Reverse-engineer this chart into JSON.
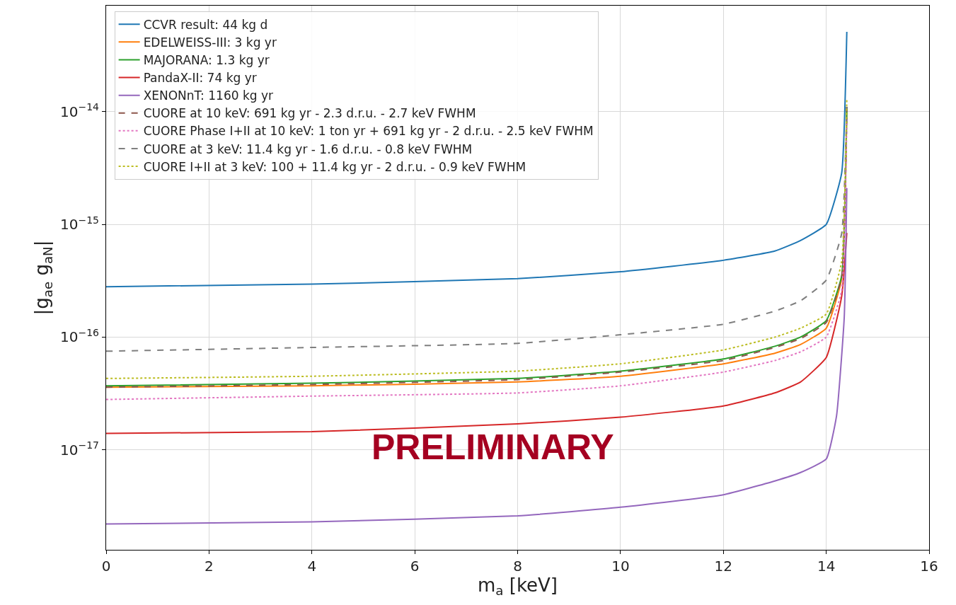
{
  "chart_data": {
    "type": "line",
    "xlabel": "m$_{a}$ [keV]",
    "ylabel": "|g$_{ae}$ g$_{aN}$|",
    "x": [
      0,
      4,
      8,
      10,
      12,
      13,
      13.5,
      14,
      14.3,
      14.4
    ],
    "series": [
      {
        "name": "CCVR result: 44 kg d",
        "color": "#1f77b4",
        "line_style": "solid",
        "values": [
          2.8e-16,
          2.95e-16,
          3.3e-16,
          3.8e-16,
          4.8e-16,
          5.8e-16,
          7.2e-16,
          1e-15,
          2.85e-15,
          5.1e-14
        ]
      },
      {
        "name": "EDELWEISS-III: 3 kg yr",
        "color": "#ff7f0e",
        "line_style": "solid",
        "values": [
          3.6e-17,
          3.7e-17,
          4e-17,
          4.5e-17,
          5.8e-17,
          7.2e-17,
          8.6e-17,
          1.2e-16,
          3.3e-16,
          1.1e-14
        ]
      },
      {
        "name": "MAJORANA: 1.3 kg yr",
        "color": "#2ca02c",
        "line_style": "solid",
        "values": [
          3.7e-17,
          3.9e-17,
          4.3e-17,
          5e-17,
          6.4e-17,
          8.3e-17,
          1e-16,
          1.4e-16,
          3.5e-16,
          1.1e-14
        ]
      },
      {
        "name": "PandaX-II: 74 kg yr",
        "color": "#d62728",
        "line_style": "solid",
        "values": [
          1.4e-17,
          1.45e-17,
          1.7e-17,
          1.95e-17,
          2.45e-17,
          3.2e-17,
          4e-17,
          6.6e-17,
          2.3e-16,
          8.4e-16
        ]
      },
      {
        "name": "XENONnT: 1160 kg yr",
        "color": "#9467bd",
        "line_style": "solid",
        "x": [
          0,
          4,
          8,
          10,
          12,
          13,
          13.5,
          14,
          14.2,
          14.35,
          14.4
        ],
        "values": [
          2.2e-18,
          2.3e-18,
          2.6e-18,
          3.1e-18,
          4e-18,
          5.3e-18,
          6.3e-18,
          8.3e-18,
          2e-17,
          1.5e-16,
          2.1e-15
        ]
      },
      {
        "name": "CUORE at 10 keV: 691 kg yr - 2.3 d.r.u. - 2.7 keV FWHM",
        "color": "#8c564b",
        "line_style": "dashed",
        "values": [
          3.6e-17,
          3.8e-17,
          4.2e-17,
          4.9e-17,
          6.2e-17,
          8.1e-17,
          9.7e-17,
          1.35e-16,
          3.4e-16,
          1.1e-14
        ]
      },
      {
        "name": "CUORE Phase I+II at 10 keV: 1 ton yr + 691 kg yr - 2 d.r.u. - 2.5 keV FWHM",
        "color": "#e377c2",
        "line_style": "dotted",
        "values": [
          2.8e-17,
          3e-17,
          3.2e-17,
          3.7e-17,
          4.9e-17,
          6.2e-17,
          7.4e-17,
          1e-16,
          2.6e-16,
          8.5e-15
        ]
      },
      {
        "name": "CUORE at 3 keV: 11.4 kg yr - 1.6 d.r.u. - 0.8 keV FWHM",
        "color": "#7f7f7f",
        "line_style": "dashed",
        "values": [
          7.5e-17,
          8.1e-17,
          8.8e-17,
          1.05e-16,
          1.3e-16,
          1.7e-16,
          2.1e-16,
          3.2e-16,
          8.3e-16,
          1.1e-14
        ]
      },
      {
        "name": "CUORE I+II at 3 keV: 100 + 11.4 kg yr - 2 d.r.u. - 0.9 keV FWHM",
        "color": "#bcbd22",
        "line_style": "dotted",
        "values": [
          4.3e-17,
          4.5e-17,
          5e-17,
          5.8e-17,
          7.7e-17,
          1e-16,
          1.2e-16,
          1.6e-16,
          4.7e-16,
          1.3e-14
        ]
      }
    ],
    "xlim": [
      0,
      16
    ],
    "xticks": [
      0,
      2,
      4,
      6,
      8,
      10,
      12,
      14,
      16
    ],
    "ylim": [
      1.3e-18,
      8.7e-14
    ],
    "yticks": [
      {
        "value": 1e-17,
        "label": "10$^{−17}$"
      },
      {
        "value": 1e-16,
        "label": "10$^{−16}$"
      },
      {
        "value": 1e-15,
        "label": "10$^{−15}$"
      },
      {
        "value": 1e-14,
        "label": "10$^{−14}$"
      }
    ],
    "log": "y",
    "grid": true,
    "legend": "top left",
    "annotations": [
      "PRELIMINARY"
    ]
  }
}
